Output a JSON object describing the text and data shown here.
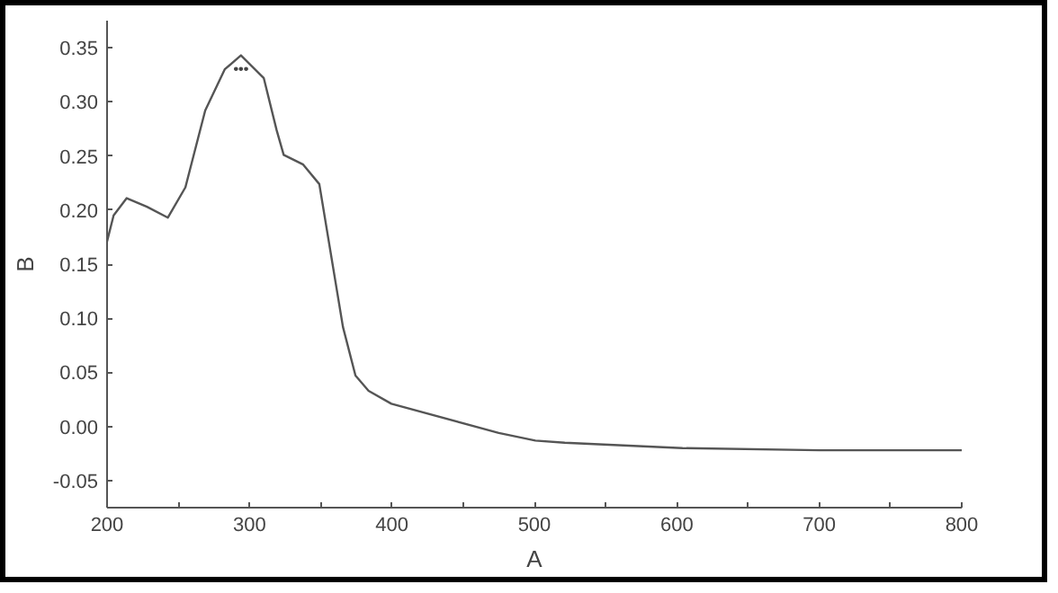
{
  "chart_data": {
    "type": "line",
    "xlabel": "A",
    "ylabel": "B",
    "x": [
      200,
      204.6,
      213.8,
      228,
      242.7,
      255,
      268.9,
      282.6,
      294,
      310,
      319,
      324,
      337.7,
      349,
      365.6,
      374.4,
      383.6,
      399.6,
      475,
      500.7,
      521.3,
      604,
      700,
      800
    ],
    "series": [
      {
        "color": "#555555",
        "values": [
          0.171,
          0.195,
          0.211,
          0.203,
          0.193,
          0.221,
          0.292,
          0.33,
          0.343,
          0.322,
          0.274,
          0.251,
          0.242,
          0.224,
          0.092,
          0.047,
          0.033,
          0.021,
          -0.006,
          -0.013,
          -0.015,
          -0.02,
          -0.022,
          -0.022
        ]
      }
    ],
    "xlim": [
      200,
      800
    ],
    "ylim": [
      -0.075,
      0.375
    ],
    "xticks": [
      200,
      {
        "value": 250,
        "label": null
      },
      300,
      {
        "value": 350,
        "label": null
      },
      400,
      {
        "value": 450,
        "label": null
      },
      500,
      {
        "value": 550,
        "label": null
      },
      600,
      {
        "value": 650,
        "label": null
      },
      700,
      {
        "value": 750,
        "label": null
      },
      800
    ],
    "yticks": [
      {
        "value": -0.05,
        "label": "-0.05"
      },
      {
        "value": 0,
        "label": "0.00"
      },
      {
        "value": 0.05,
        "label": "0.05"
      },
      {
        "value": 0.1,
        "label": "0.10"
      },
      {
        "value": 0.15,
        "label": "0.15"
      },
      {
        "value": 0.2,
        "label": "0.20"
      },
      {
        "value": 0.25,
        "label": "0.25"
      },
      {
        "value": 0.3,
        "label": "0.30"
      },
      {
        "value": 0.35,
        "label": "0.35"
      }
    ],
    "annotations": [
      {
        "text": "•••",
        "x": 294,
        "y": 0.33
      }
    ],
    "grid": false,
    "marker": "none",
    "line_style": "solid"
  }
}
